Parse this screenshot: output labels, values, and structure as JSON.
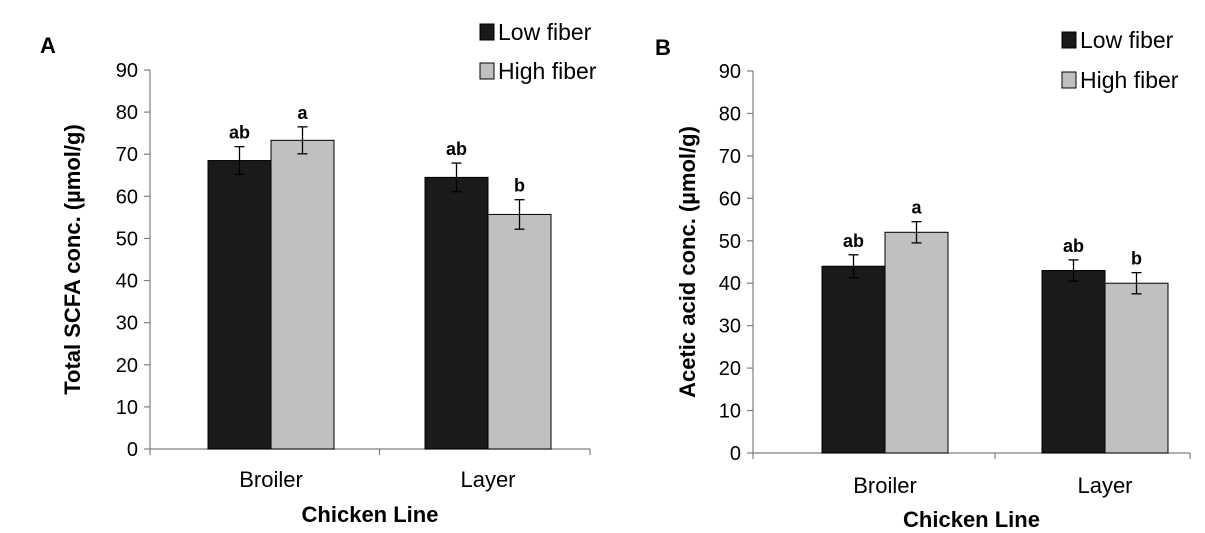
{
  "colors": {
    "low_fiber": "#1a1a1a",
    "high_fiber": "#c0c0c0",
    "bar_stroke": "#000000",
    "axis": "#7f7f7f"
  },
  "chart_data": [
    {
      "type": "bar",
      "panel_label": "A",
      "categories": [
        "Broiler",
        "Layer"
      ],
      "series": [
        {
          "name": "Low fiber",
          "values": [
            68.5,
            64.5
          ],
          "errors": [
            3.3,
            3.4
          ],
          "labels": [
            "ab",
            "ab"
          ]
        },
        {
          "name": "High fiber",
          "values": [
            73.3,
            55.7
          ],
          "errors": [
            3.2,
            3.5
          ],
          "labels": [
            "a",
            "b"
          ]
        }
      ],
      "xlabel": "Chicken Line",
      "ylabel": "Total SCFA conc. (µmol/g)",
      "ylim": [
        0,
        90
      ],
      "yticks": [
        0,
        10,
        20,
        30,
        40,
        50,
        60,
        70,
        80,
        90
      ],
      "grid": false,
      "legend": "top-right"
    },
    {
      "type": "bar",
      "panel_label": "B",
      "categories": [
        "Broiler",
        "Layer"
      ],
      "series": [
        {
          "name": "Low fiber",
          "values": [
            44.0,
            43.0
          ],
          "errors": [
            2.7,
            2.5
          ],
          "labels": [
            "ab",
            "ab"
          ]
        },
        {
          "name": "High fiber",
          "values": [
            52.0,
            40.0
          ],
          "errors": [
            2.5,
            2.5
          ],
          "labels": [
            "a",
            "b"
          ]
        }
      ],
      "xlabel": "Chicken Line",
      "ylabel": "Acetic acid conc. (µmol/g)",
      "ylim": [
        0,
        90
      ],
      "yticks": [
        0,
        10,
        20,
        30,
        40,
        50,
        60,
        70,
        80,
        90
      ],
      "grid": false,
      "legend": "top-right"
    }
  ]
}
